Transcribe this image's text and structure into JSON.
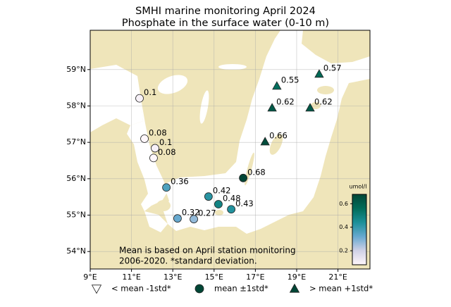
{
  "chart_data": {
    "type": "map",
    "title": "SMHI marine monitoring April 2024",
    "subtitle": "Phosphate in the surface water (0-10 m)",
    "xlim": [
      9,
      22.55
    ],
    "ylim": [
      53.52,
      60.08
    ],
    "xticks": [
      {
        "value": 9,
        "label": "9°E"
      },
      {
        "value": 11,
        "label": "11°E"
      },
      {
        "value": 13,
        "label": "13°E"
      },
      {
        "value": 15,
        "label": "15°E"
      },
      {
        "value": 17,
        "label": "17°E"
      },
      {
        "value": 19,
        "label": "19°E"
      },
      {
        "value": 21,
        "label": "21°E"
      }
    ],
    "yticks": [
      {
        "value": 54,
        "label": "54°N"
      },
      {
        "value": 55,
        "label": "55°N"
      },
      {
        "value": 56,
        "label": "56°N"
      },
      {
        "value": 57,
        "label": "57°N"
      },
      {
        "value": 58,
        "label": "58°N"
      },
      {
        "value": 59,
        "label": "59°N"
      }
    ],
    "grid": true,
    "series": [
      {
        "name": "< mean -1std*",
        "marker": "triangle-down",
        "color": "#ffffff",
        "x": [],
        "y": [],
        "values": []
      },
      {
        "name": "mean ±1std*",
        "marker": "circle",
        "color": "#014636",
        "x": [
          11.39,
          11.63,
          12.14,
          12.07,
          12.69,
          14.73,
          15.21,
          15.83,
          13.23,
          14.02,
          16.41
        ],
        "y": [
          58.21,
          57.1,
          56.84,
          56.57,
          55.76,
          55.51,
          55.3,
          55.16,
          54.91,
          54.89,
          56.02
        ],
        "values": [
          0.1,
          0.08,
          0.1,
          0.08,
          0.36,
          0.42,
          0.48,
          0.43,
          0.32,
          0.27,
          0.68
        ]
      },
      {
        "name": "> mean +1std*",
        "marker": "triangle-up",
        "color": "#014636",
        "x": [
          18.04,
          20.09,
          17.81,
          19.65,
          17.47
        ],
        "y": [
          58.55,
          58.88,
          57.95,
          57.95,
          57.02
        ],
        "values": [
          0.55,
          0.57,
          0.62,
          0.62,
          0.66
        ]
      }
    ],
    "colorbar": {
      "label": "umol/l",
      "lim": [
        0.08,
        0.68
      ],
      "ticks": [
        0.2,
        0.4,
        0.6
      ],
      "colors": [
        "#fff7fb",
        "#d0d1e6",
        "#67a9cf",
        "#1c9099",
        "#016c59",
        "#014636"
      ]
    },
    "annotation": [
      "Mean is based on April station monitoring",
      "2006-2020. *standard deviation."
    ]
  }
}
